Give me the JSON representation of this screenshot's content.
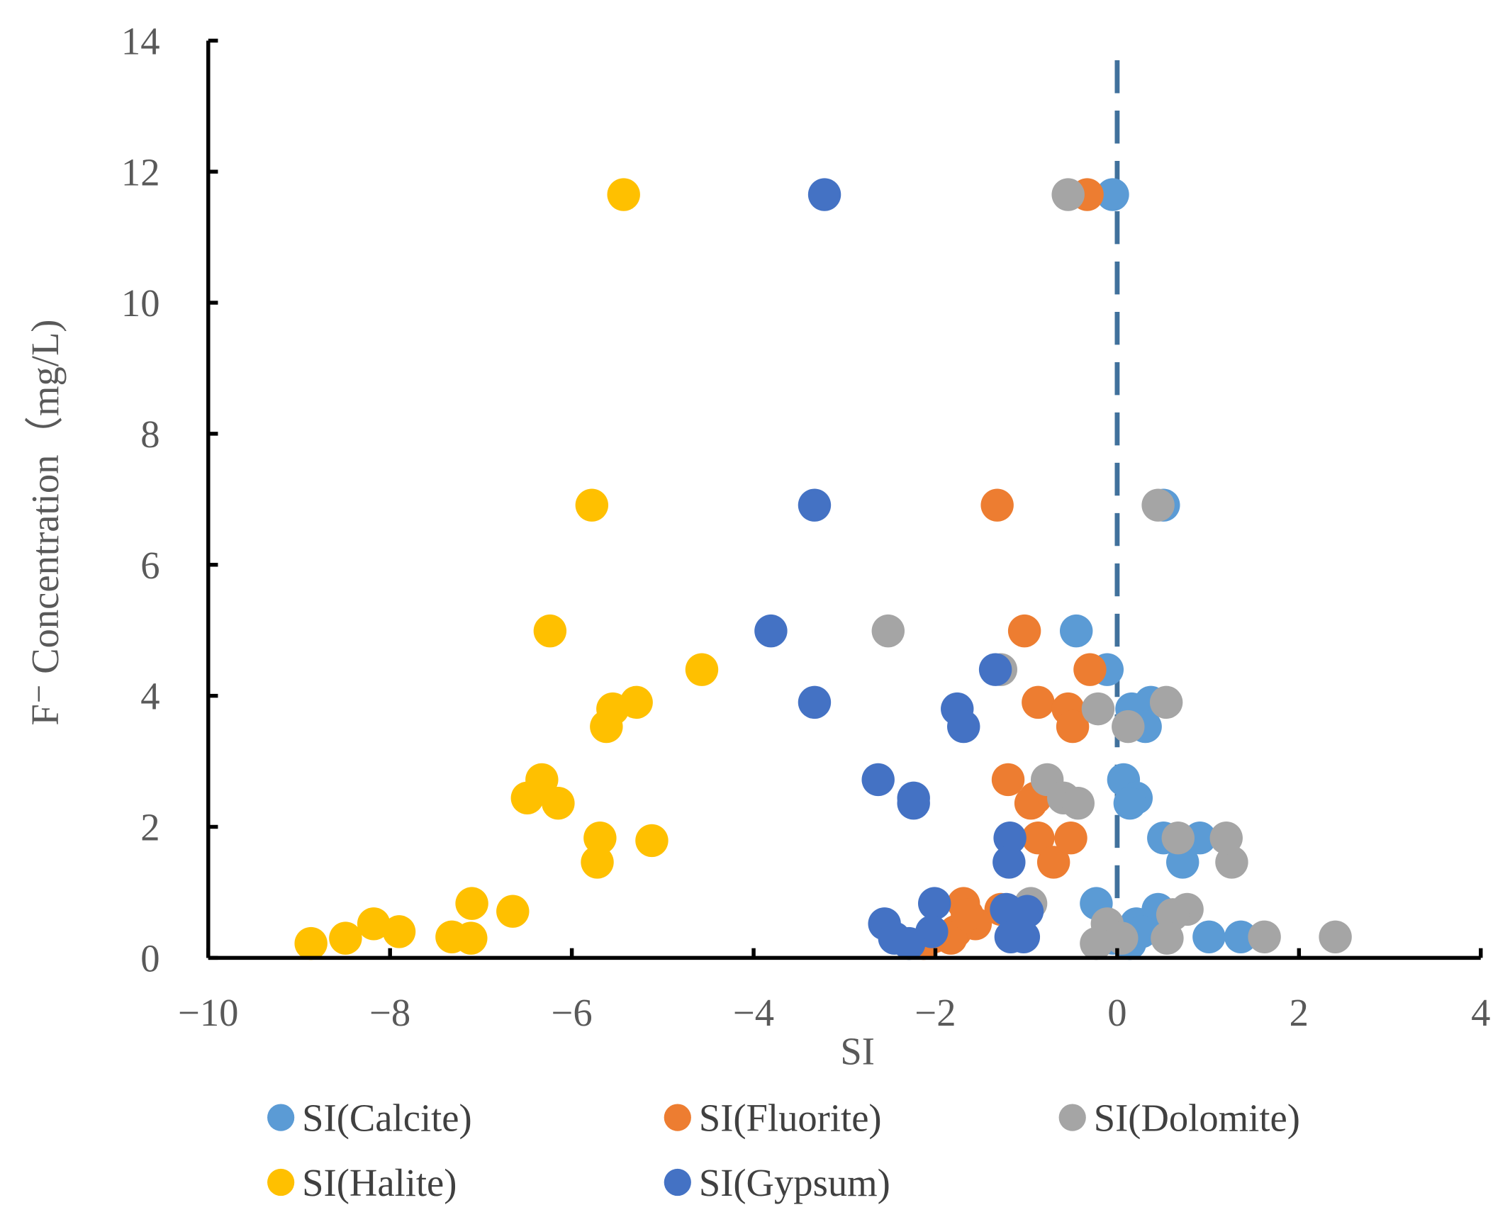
{
  "chart_data": {
    "type": "scatter",
    "title": "",
    "xlabel": "SI",
    "ylabel": "F⁻ Concentration（mg/L)",
    "xlim": [
      -10,
      4
    ],
    "ylim": [
      0,
      14
    ],
    "xticks": [
      -10,
      -8,
      -6,
      -4,
      -2,
      0,
      2,
      4
    ],
    "xtick_labels": [
      "−10",
      "−8",
      "−6",
      "−4",
      "−2",
      "0",
      "2",
      "4"
    ],
    "yticks": [
      0,
      2,
      4,
      6,
      8,
      10,
      12,
      14
    ],
    "ytick_labels": [
      "0",
      "2",
      "4",
      "6",
      "8",
      "10",
      "12",
      "14"
    ],
    "grid": false,
    "legend_position": "bottom",
    "reference_line": {
      "x": 0,
      "style": "dashed",
      "color": "#41719C"
    },
    "series": [
      {
        "name": "SI(Calcite)",
        "color": "#5B9BD5",
        "x": [
          -0.05,
          0.51,
          -0.45,
          -0.11,
          0.37,
          0.16,
          0.31,
          0.07,
          0.21,
          0.14,
          0.51,
          0.72,
          0.91,
          -0.23,
          0.45,
          0.21,
          1.01,
          1.36,
          0.14,
          0.27,
          -0.05
        ],
        "y": [
          11.65,
          6.91,
          4.99,
          4.4,
          3.9,
          3.8,
          3.53,
          2.72,
          2.44,
          2.36,
          1.83,
          1.46,
          1.83,
          0.83,
          0.74,
          0.52,
          0.32,
          0.32,
          0.22,
          0.4,
          0.3
        ]
      },
      {
        "name": "SI(Fluorite)",
        "color": "#ED7D31",
        "x": [
          -0.33,
          -1.32,
          -1.02,
          -0.3,
          -0.87,
          -0.54,
          -0.49,
          -1.2,
          -0.9,
          -0.95,
          -0.87,
          -0.7,
          -0.51,
          -1.69,
          -1.28,
          -1.56,
          -1.78,
          -1.83,
          -2.13,
          -2.02,
          -1.65
        ],
        "y": [
          11.65,
          6.91,
          4.99,
          4.4,
          3.9,
          3.8,
          3.53,
          2.72,
          2.44,
          2.36,
          1.83,
          1.46,
          1.83,
          0.83,
          0.74,
          0.52,
          0.4,
          0.3,
          0.22,
          0.32,
          0.66
        ]
      },
      {
        "name": "SI(Dolomite)",
        "color": "#A5A5A5",
        "x": [
          -0.54,
          0.45,
          -2.52,
          -1.28,
          0.54,
          -0.21,
          0.12,
          -0.77,
          -0.59,
          -0.43,
          0.67,
          1.26,
          1.2,
          -0.95,
          0.77,
          0.61,
          -0.11,
          0.55,
          1.62,
          2.4,
          -0.23,
          0.05
        ],
        "y": [
          11.65,
          6.91,
          4.99,
          4.4,
          3.9,
          3.8,
          3.53,
          2.72,
          2.44,
          2.36,
          1.83,
          1.46,
          1.83,
          0.83,
          0.74,
          0.66,
          0.52,
          0.3,
          0.32,
          0.32,
          0.22,
          0.3
        ]
      },
      {
        "name": "SI(Halite)",
        "color": "#FFC000",
        "x": [
          -5.43,
          -5.78,
          -6.24,
          -4.57,
          -5.29,
          -5.55,
          -5.62,
          -6.33,
          -6.49,
          -6.15,
          -5.69,
          -5.72,
          -5.12,
          -7.1,
          -6.65,
          -7.32,
          -7.11,
          -8.18,
          -7.9,
          -8.49,
          -8.87
        ],
        "y": [
          11.65,
          6.91,
          4.99,
          4.4,
          3.9,
          3.8,
          3.53,
          2.72,
          2.44,
          2.36,
          1.83,
          1.46,
          1.79,
          0.83,
          0.71,
          0.32,
          0.3,
          0.52,
          0.4,
          0.3,
          0.22
        ]
      },
      {
        "name": "SI(Gypsum)",
        "color": "#4472C4",
        "x": [
          -3.22,
          -3.33,
          -3.81,
          -1.34,
          -3.33,
          -1.76,
          -1.69,
          -2.63,
          -2.24,
          -2.24,
          -1.18,
          -1.19,
          -2.01,
          -1.22,
          -0.99,
          -2.56,
          -2.04,
          -1.17,
          -1.03,
          -2.45,
          -2.29
        ],
        "y": [
          11.65,
          6.91,
          4.99,
          4.4,
          3.9,
          3.8,
          3.53,
          2.72,
          2.44,
          2.36,
          1.83,
          1.46,
          0.83,
          0.74,
          0.71,
          0.52,
          0.4,
          0.32,
          0.32,
          0.3,
          0.22
        ]
      }
    ]
  }
}
